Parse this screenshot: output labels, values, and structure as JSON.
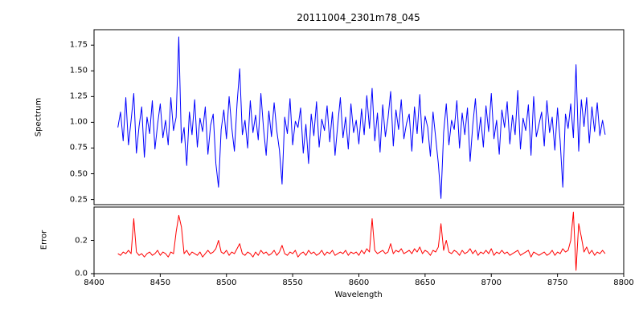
{
  "chart_data": {
    "type": "line",
    "title": "20111004_2301m78_045",
    "xlabel": "Wavelength",
    "x_start": 8418,
    "x_step": 2.0,
    "xlim": [
      8400,
      8800
    ],
    "x_ticks": [
      8400,
      8450,
      8500,
      8550,
      8600,
      8650,
      8700,
      8750,
      8800
    ],
    "x_tick_labels": [
      "8400",
      "8450",
      "8500",
      "8550",
      "8600",
      "8650",
      "8700",
      "8750",
      "8800"
    ],
    "grid": false,
    "legend": "none",
    "panels": [
      {
        "name": "spectrum",
        "ylabel": "Spectrum",
        "line_color": "#0000ff",
        "ylim": [
          0.2,
          1.9
        ],
        "y_ticks": [
          0.25,
          0.5,
          0.75,
          1.0,
          1.25,
          1.5,
          1.75
        ],
        "y_tick_labels": [
          "0.25",
          "0.50",
          "0.75",
          "1.00",
          "1.25",
          "1.50",
          "1.75"
        ],
        "values": [
          0.95,
          1.1,
          0.82,
          1.24,
          0.78,
          1.02,
          1.28,
          0.7,
          0.96,
          1.15,
          0.66,
          1.05,
          0.89,
          1.21,
          0.74,
          0.98,
          1.18,
          0.85,
          1.02,
          0.78,
          1.24,
          0.92,
          1.05,
          1.83,
          0.8,
          0.95,
          0.58,
          1.1,
          0.88,
          1.22,
          0.76,
          1.04,
          0.91,
          1.15,
          0.69,
          0.97,
          1.08,
          0.6,
          0.37,
          0.93,
          1.12,
          0.84,
          1.25,
          0.95,
          0.72,
          1.18,
          1.52,
          0.88,
          1.02,
          0.75,
          1.21,
          0.9,
          1.07,
          0.83,
          1.28,
          0.94,
          0.68,
          1.11,
          0.86,
          1.19,
          0.92,
          0.73,
          0.4,
          1.05,
          0.89,
          1.23,
          0.78,
          1.01,
          0.95,
          1.14,
          0.7,
          0.98,
          0.6,
          1.08,
          0.87,
          1.2,
          0.76,
          1.03,
          0.92,
          1.16,
          0.81,
          1.1,
          0.68,
          0.97,
          1.24,
          0.85,
          1.05,
          0.74,
          1.18,
          0.9,
          1.02,
          0.79,
          1.13,
          0.88,
          1.26,
          0.94,
          1.33,
          0.82,
          1.09,
          0.71,
          1.17,
          0.86,
          1.04,
          1.3,
          0.77,
          1.12,
          0.93,
          1.22,
          0.84,
          0.99,
          1.08,
          0.72,
          1.15,
          0.89,
          1.27,
          0.8,
          1.06,
          0.95,
          0.67,
          1.1,
          0.85,
          0.6,
          0.26,
          0.9,
          1.18,
          0.78,
          1.02,
          0.93,
          1.21,
          0.75,
          1.09,
          0.88,
          1.14,
          0.62,
          0.97,
          1.23,
          0.83,
          1.05,
          0.76,
          1.16,
          0.91,
          1.28,
          0.84,
          1.02,
          0.69,
          1.12,
          0.95,
          1.2,
          0.79,
          1.07,
          0.88,
          1.31,
          0.74,
          1.04,
          0.92,
          1.17,
          0.68,
          1.25,
          0.86,
          0.98,
          1.1,
          0.77,
          1.21,
          0.9,
          1.05,
          0.73,
          1.14,
          0.82,
          0.37,
          1.08,
          0.94,
          1.18,
          0.85,
          1.56,
          0.72,
          1.22,
          0.96,
          1.24,
          0.8,
          1.15,
          0.91,
          1.19,
          0.87,
          1.02,
          0.88
        ]
      },
      {
        "name": "error",
        "ylabel": "Error",
        "line_color": "#ff0000",
        "ylim": [
          0.0,
          0.4
        ],
        "y_ticks": [
          0.0,
          0.2
        ],
        "y_tick_labels": [
          "0.0",
          "0.2"
        ],
        "values": [
          0.12,
          0.11,
          0.13,
          0.12,
          0.14,
          0.12,
          0.33,
          0.13,
          0.11,
          0.12,
          0.1,
          0.12,
          0.13,
          0.11,
          0.12,
          0.14,
          0.11,
          0.13,
          0.12,
          0.1,
          0.13,
          0.12,
          0.25,
          0.35,
          0.28,
          0.12,
          0.14,
          0.11,
          0.13,
          0.12,
          0.11,
          0.13,
          0.1,
          0.12,
          0.14,
          0.12,
          0.13,
          0.15,
          0.2,
          0.13,
          0.12,
          0.14,
          0.11,
          0.13,
          0.12,
          0.15,
          0.18,
          0.12,
          0.11,
          0.13,
          0.12,
          0.1,
          0.13,
          0.11,
          0.14,
          0.12,
          0.13,
          0.11,
          0.12,
          0.14,
          0.11,
          0.13,
          0.17,
          0.12,
          0.11,
          0.13,
          0.12,
          0.14,
          0.1,
          0.12,
          0.13,
          0.11,
          0.14,
          0.12,
          0.13,
          0.11,
          0.12,
          0.14,
          0.11,
          0.13,
          0.12,
          0.14,
          0.11,
          0.12,
          0.13,
          0.12,
          0.14,
          0.11,
          0.13,
          0.12,
          0.13,
          0.11,
          0.14,
          0.12,
          0.15,
          0.13,
          0.33,
          0.14,
          0.12,
          0.13,
          0.14,
          0.12,
          0.13,
          0.18,
          0.12,
          0.14,
          0.13,
          0.15,
          0.12,
          0.13,
          0.14,
          0.12,
          0.15,
          0.13,
          0.16,
          0.12,
          0.14,
          0.13,
          0.11,
          0.14,
          0.13,
          0.16,
          0.3,
          0.14,
          0.2,
          0.13,
          0.12,
          0.14,
          0.13,
          0.11,
          0.14,
          0.12,
          0.13,
          0.15,
          0.12,
          0.14,
          0.11,
          0.13,
          0.12,
          0.14,
          0.12,
          0.15,
          0.11,
          0.13,
          0.12,
          0.14,
          0.12,
          0.13,
          0.11,
          0.12,
          0.13,
          0.14,
          0.11,
          0.12,
          0.13,
          0.14,
          0.1,
          0.13,
          0.12,
          0.11,
          0.12,
          0.13,
          0.11,
          0.12,
          0.14,
          0.11,
          0.13,
          0.12,
          0.15,
          0.13,
          0.14,
          0.2,
          0.37,
          0.02,
          0.3,
          0.22,
          0.13,
          0.16,
          0.12,
          0.14,
          0.11,
          0.13,
          0.12,
          0.14,
          0.12
        ]
      }
    ]
  }
}
